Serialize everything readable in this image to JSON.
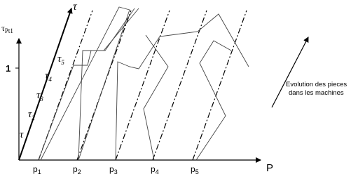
{
  "axes": {
    "y_label": {
      "symbol": "τ",
      "subscript": "Pt1"
    },
    "y_mark": "1",
    "x_label": "P",
    "diagonal_label": "τ"
  },
  "tau_labels": [
    {
      "symbol": "τ",
      "subscript": "5"
    },
    {
      "symbol": "τ",
      "subscript": "4"
    },
    {
      "symbol": "τ",
      "subscript": "3"
    },
    {
      "symbol": "τ",
      "subscript": "2"
    },
    {
      "symbol": "τ"
    }
  ],
  "p_labels": [
    {
      "symbol": "p",
      "subscript": "1"
    },
    {
      "symbol": "p",
      "subscript": "2"
    },
    {
      "symbol": "p",
      "subscript": "3"
    },
    {
      "symbol": "p",
      "subscript": "4"
    },
    {
      "symbol": "p",
      "subscript": "5"
    }
  ],
  "note": {
    "line1": "Evolution des pieces",
    "line2": "dans les machines"
  }
}
